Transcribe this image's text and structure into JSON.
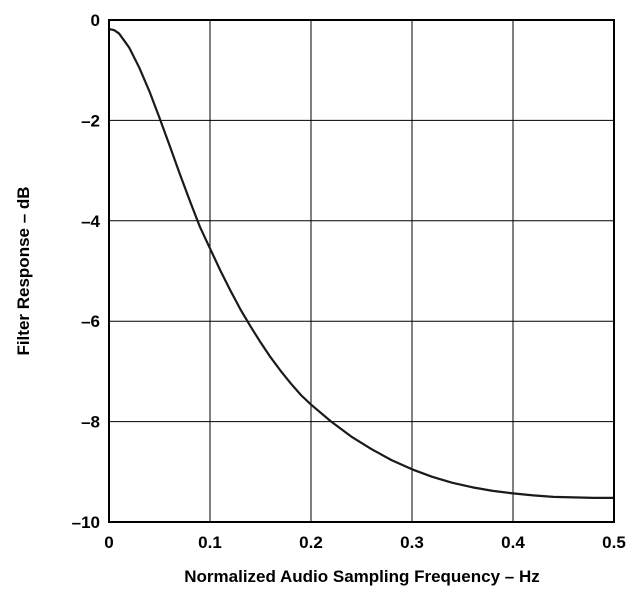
{
  "chart_data": {
    "type": "line",
    "title": "",
    "xlabel": "Normalized Audio Sampling Frequency – Hz",
    "ylabel": "Filter Response – dB",
    "xlim": [
      0,
      0.5
    ],
    "ylim": [
      -10,
      0
    ],
    "grid": true,
    "x_ticks": [
      {
        "value": 0,
        "label": "0"
      },
      {
        "value": 0.1,
        "label": "0.1"
      },
      {
        "value": 0.2,
        "label": "0.2"
      },
      {
        "value": 0.3,
        "label": "0.3"
      },
      {
        "value": 0.4,
        "label": "0.4"
      },
      {
        "value": 0.5,
        "label": "0.5"
      }
    ],
    "y_ticks": [
      {
        "value": 0,
        "label": "0"
      },
      {
        "value": -2,
        "label": "–2"
      },
      {
        "value": -4,
        "label": "–4"
      },
      {
        "value": -6,
        "label": "–6"
      },
      {
        "value": -8,
        "label": "–8"
      },
      {
        "value": -10,
        "label": "–10"
      }
    ],
    "series": [
      {
        "color": "#1a1a1a",
        "x": [
          0,
          0.005,
          0.01,
          0.02,
          0.03,
          0.04,
          0.05,
          0.06,
          0.07,
          0.08,
          0.09,
          0.1,
          0.11,
          0.12,
          0.13,
          0.14,
          0.15,
          0.16,
          0.17,
          0.18,
          0.19,
          0.2,
          0.22,
          0.24,
          0.26,
          0.28,
          0.3,
          0.32,
          0.34,
          0.36,
          0.38,
          0.4,
          0.42,
          0.44,
          0.46,
          0.48,
          0.5
        ],
        "values": [
          -0.18,
          -0.2,
          -0.27,
          -0.55,
          -0.95,
          -1.42,
          -1.95,
          -2.5,
          -3.06,
          -3.6,
          -4.12,
          -4.55,
          -4.98,
          -5.38,
          -5.76,
          -6.1,
          -6.42,
          -6.72,
          -6.99,
          -7.24,
          -7.47,
          -7.66,
          -8.0,
          -8.3,
          -8.55,
          -8.77,
          -8.95,
          -9.1,
          -9.22,
          -9.31,
          -9.38,
          -9.43,
          -9.47,
          -9.5,
          -9.51,
          -9.52,
          -9.52
        ]
      }
    ]
  }
}
